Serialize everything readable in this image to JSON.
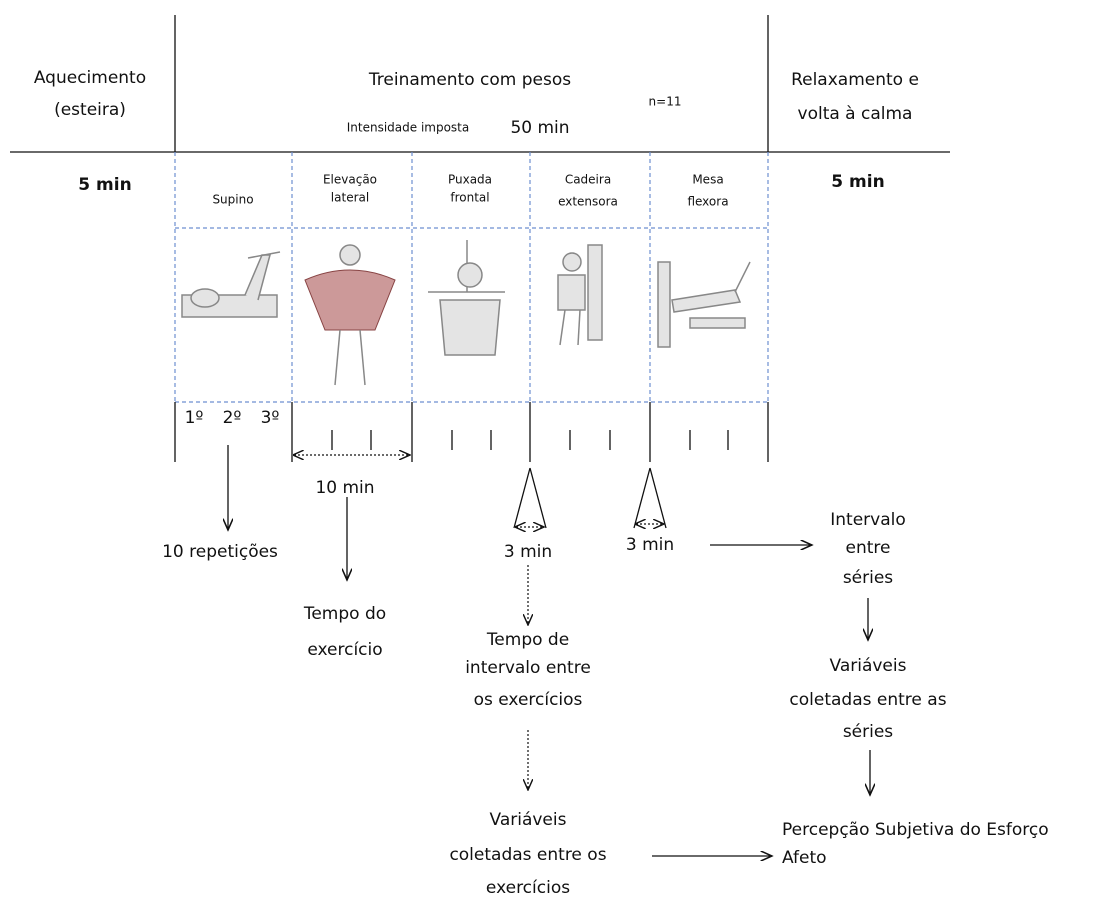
{
  "phases": [
    {
      "lines": [
        "Aquecimento",
        "(esteira)"
      ],
      "duration": "5 min"
    },
    {
      "lines": [
        "Treinamento com pesos"
      ],
      "intensity": "Intensidade imposta",
      "duration": "50 min",
      "sample": "n=11"
    },
    {
      "lines": [
        "Relaxamento e",
        "volta à calma"
      ],
      "duration": "5 min"
    }
  ],
  "exercises": [
    {
      "lines": [
        "Supino"
      ]
    },
    {
      "lines": [
        "Elevação",
        "lateral"
      ]
    },
    {
      "lines": [
        "Puxada",
        "frontal"
      ]
    },
    {
      "lines": [
        "Cadeira",
        "extensora"
      ]
    },
    {
      "lines": [
        "Mesa",
        "flexora"
      ]
    }
  ],
  "series": [
    "1º",
    "2º",
    "3º"
  ],
  "annotations": {
    "repetitions": "10 repetições",
    "exercise_time": "10 min",
    "exercise_time_label": [
      "Tempo do",
      "exercício"
    ],
    "rest_exercises": "3 min",
    "rest_exercises_label": [
      "Tempo de",
      "intervalo entre",
      "os exercícios"
    ],
    "vars_exercises": [
      "Variáveis",
      "coletadas entre os",
      "exercícios"
    ],
    "rest_series": "3 min",
    "rest_series_label": [
      "Intervalo",
      "entre",
      "séries"
    ],
    "vars_series": [
      "Variáveis",
      "coletadas entre as",
      "séries"
    ],
    "measures": [
      "Percepção Subjetiva do Esforço",
      "Afeto"
    ]
  }
}
